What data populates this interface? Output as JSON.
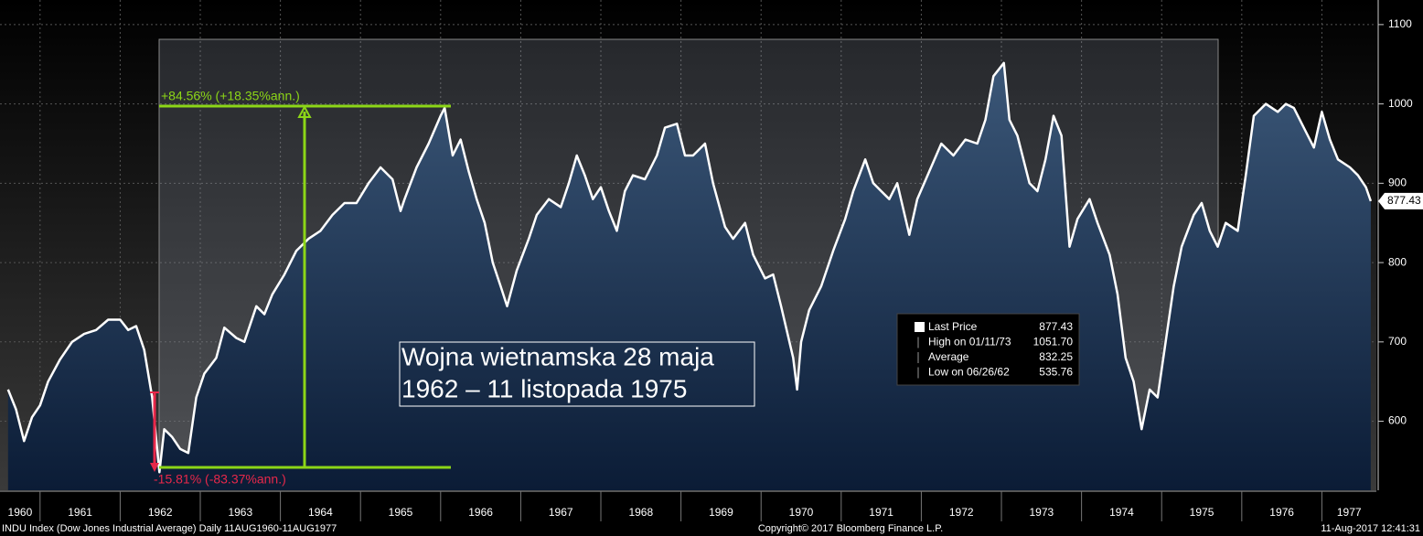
{
  "chart_data": {
    "type": "area",
    "series": [
      {
        "name": "Last Price",
        "color": "#ffffff",
        "x": [
          1960.6,
          1960.7,
          1960.8,
          1960.9,
          1961.0,
          1961.1,
          1961.25,
          1961.4,
          1961.55,
          1961.7,
          1961.85,
          1962.0,
          1962.1,
          1962.2,
          1962.3,
          1962.4,
          1962.49,
          1962.55,
          1962.65,
          1962.75,
          1962.85,
          1962.95,
          1963.05,
          1963.2,
          1963.3,
          1963.45,
          1963.55,
          1963.7,
          1963.8,
          1963.9,
          1964.05,
          1964.2,
          1964.35,
          1964.5,
          1964.65,
          1964.8,
          1964.95,
          1965.1,
          1965.25,
          1965.4,
          1965.5,
          1965.55,
          1965.7,
          1965.85,
          1966.0,
          1966.05,
          1966.15,
          1966.25,
          1966.35,
          1966.45,
          1966.55,
          1966.65,
          1966.75,
          1966.83,
          1966.95,
          1967.1,
          1967.2,
          1967.35,
          1967.5,
          1967.6,
          1967.7,
          1967.8,
          1967.9,
          1968.0,
          1968.1,
          1968.2,
          1968.3,
          1968.4,
          1968.55,
          1968.7,
          1968.8,
          1968.95,
          1969.05,
          1969.15,
          1969.3,
          1969.4,
          1969.55,
          1969.65,
          1969.8,
          1969.9,
          1970.05,
          1970.15,
          1970.25,
          1970.4,
          1970.45,
          1970.5,
          1970.6,
          1970.75,
          1970.9,
          1971.05,
          1971.15,
          1971.3,
          1971.4,
          1971.5,
          1971.6,
          1971.7,
          1971.85,
          1971.95,
          1972.1,
          1972.25,
          1972.4,
          1972.55,
          1972.7,
          1972.8,
          1972.9,
          1973.03,
          1973.1,
          1973.2,
          1973.35,
          1973.45,
          1973.55,
          1973.65,
          1973.75,
          1973.85,
          1973.95,
          1974.1,
          1974.2,
          1974.35,
          1974.45,
          1974.55,
          1974.65,
          1974.75,
          1974.85,
          1974.95,
          1975.05,
          1975.15,
          1975.25,
          1975.4,
          1975.5,
          1975.6,
          1975.7,
          1975.8,
          1975.95,
          1976.05,
          1976.15,
          1976.3,
          1976.45,
          1976.55,
          1976.65,
          1976.8,
          1976.9,
          1977.0,
          1977.1,
          1977.2,
          1977.35,
          1977.45,
          1977.55,
          1977.61
        ],
        "values": [
          640,
          615,
          575,
          605,
          620,
          650,
          678,
          700,
          710,
          715,
          728,
          728,
          715,
          720,
          690,
          630,
          535.76,
          590,
          580,
          565,
          560,
          630,
          660,
          680,
          718,
          705,
          700,
          745,
          735,
          760,
          785,
          815,
          830,
          840,
          860,
          875,
          875,
          900,
          920,
          905,
          865,
          880,
          920,
          950,
          985,
          995,
          935,
          955,
          915,
          880,
          850,
          800,
          770,
          745,
          790,
          830,
          860,
          880,
          870,
          900,
          935,
          910,
          880,
          895,
          865,
          840,
          890,
          910,
          905,
          935,
          970,
          975,
          935,
          935,
          950,
          900,
          845,
          830,
          850,
          810,
          780,
          785,
          745,
          680,
          640,
          700,
          740,
          770,
          815,
          855,
          890,
          930,
          900,
          890,
          880,
          900,
          835,
          880,
          915,
          950,
          935,
          955,
          950,
          980,
          1035,
          1051.7,
          980,
          960,
          900,
          890,
          930,
          985,
          960,
          820,
          855,
          880,
          850,
          810,
          760,
          680,
          650,
          590,
          640,
          630,
          700,
          770,
          820,
          860,
          875,
          840,
          820,
          850,
          840,
          910,
          985,
          1000,
          990,
          1000,
          995,
          965,
          945,
          990,
          955,
          930,
          920,
          910,
          895,
          877.43
        ]
      }
    ],
    "xlim": [
      1960.5,
      1977.68
    ],
    "xticks": [
      1960,
      1961,
      1962,
      1963,
      1964,
      1965,
      1966,
      1967,
      1968,
      1969,
      1970,
      1971,
      1972,
      1973,
      1974,
      1975,
      1976,
      1977
    ],
    "ylim": [
      513,
      1131
    ],
    "yticks": [
      600,
      700,
      800,
      900,
      1000,
      1100
    ],
    "grid": true,
    "legend_stats": [
      {
        "label": "Last Price",
        "value": 877.43
      },
      {
        "label": "High on 01/11/73",
        "value": 1051.7,
        "value_label": "1051.70"
      },
      {
        "label": "Average",
        "value": 832.25
      },
      {
        "label": "Low on 06/26/62",
        "value": 535.76
      }
    ],
    "annotations": {
      "gain": "+84.56% (+18.35%ann.)",
      "loss": "-15.81% (-83.37%ann.)",
      "text_lines": [
        "Wojna wietnamska 28 maja",
        "1962 – 11 listopada 1975"
      ]
    },
    "footer": {
      "left": "INDU Index (Dow Jones Industrial Average)  Daily 11AUG1960-11AUG1977",
      "center": "Copyright© 2017 Bloomberg Finance L.P.",
      "right": "11-Aug-2017 12:41:31"
    }
  }
}
